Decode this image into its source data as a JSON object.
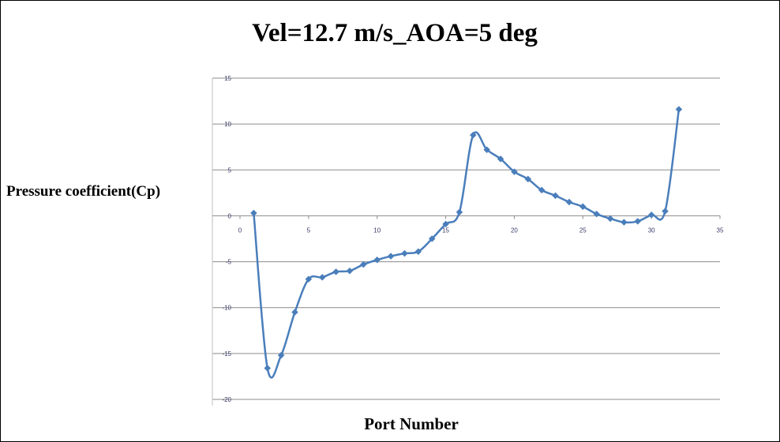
{
  "chart_data": {
    "type": "line",
    "title": "Vel=12.7 m/s_AOA=5 deg",
    "xlabel": "Port Number",
    "ylabel": "Pressure coefficient(Cp)",
    "xlim": [
      0,
      35
    ],
    "ylim": [
      -20,
      15
    ],
    "x_ticks": [
      0,
      5,
      10,
      15,
      20,
      25,
      30,
      35
    ],
    "y_ticks": [
      15,
      10,
      5,
      0,
      -5,
      -10,
      -15,
      -20
    ],
    "grid": "horizontal",
    "legend": "none",
    "marker": "diamond",
    "smooth": true,
    "color": "#4a7ebb",
    "series": [
      {
        "x": [
          1,
          2,
          3,
          4,
          5,
          6,
          7,
          8,
          9,
          10,
          11,
          12,
          13,
          14,
          15,
          16,
          17,
          18,
          19,
          20,
          21,
          22,
          23,
          24,
          25,
          26,
          27,
          28,
          29,
          30,
          31,
          32
        ],
        "values": [
          0.3,
          -16.6,
          -15.2,
          -10.5,
          -6.9,
          -6.7,
          -6.1,
          -6.0,
          -5.3,
          -4.8,
          -4.4,
          -4.1,
          -3.9,
          -2.5,
          -0.9,
          0.4,
          8.8,
          7.2,
          6.2,
          4.8,
          4.0,
          2.8,
          2.2,
          1.5,
          1.0,
          0.2,
          -0.3,
          -0.7,
          -0.6,
          0.1,
          0.5,
          11.6
        ]
      }
    ]
  }
}
